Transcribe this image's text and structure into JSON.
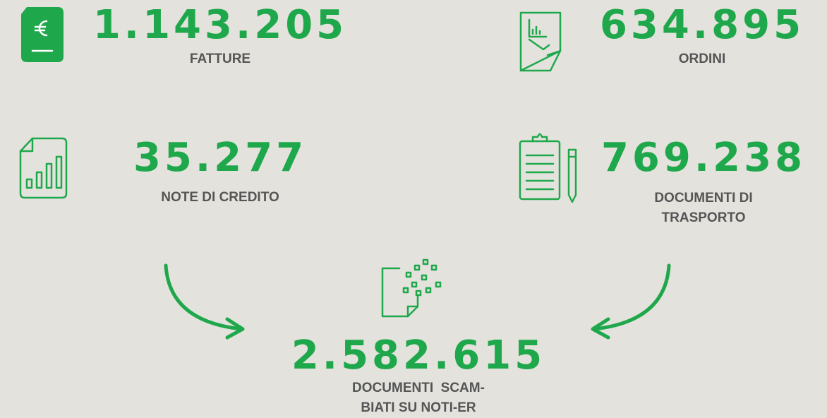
{
  "stats": [
    {
      "value": "1.143.205",
      "label_lines": [
        "FATTURE"
      ]
    },
    {
      "value": "634.895",
      "label_lines": [
        "ORDINI"
      ]
    },
    {
      "value": "35.277",
      "label_lines": [
        "NOTE DI CREDITO"
      ]
    },
    {
      "value": "769.238",
      "label_lines": [
        "DOCUMENTI DI",
        "TRASPORTO"
      ]
    }
  ],
  "total": {
    "value": "2.582.615",
    "label_lines": [
      "DOCUMENTI  SCAM-",
      "BIATI SU NOTI-ER"
    ]
  }
}
